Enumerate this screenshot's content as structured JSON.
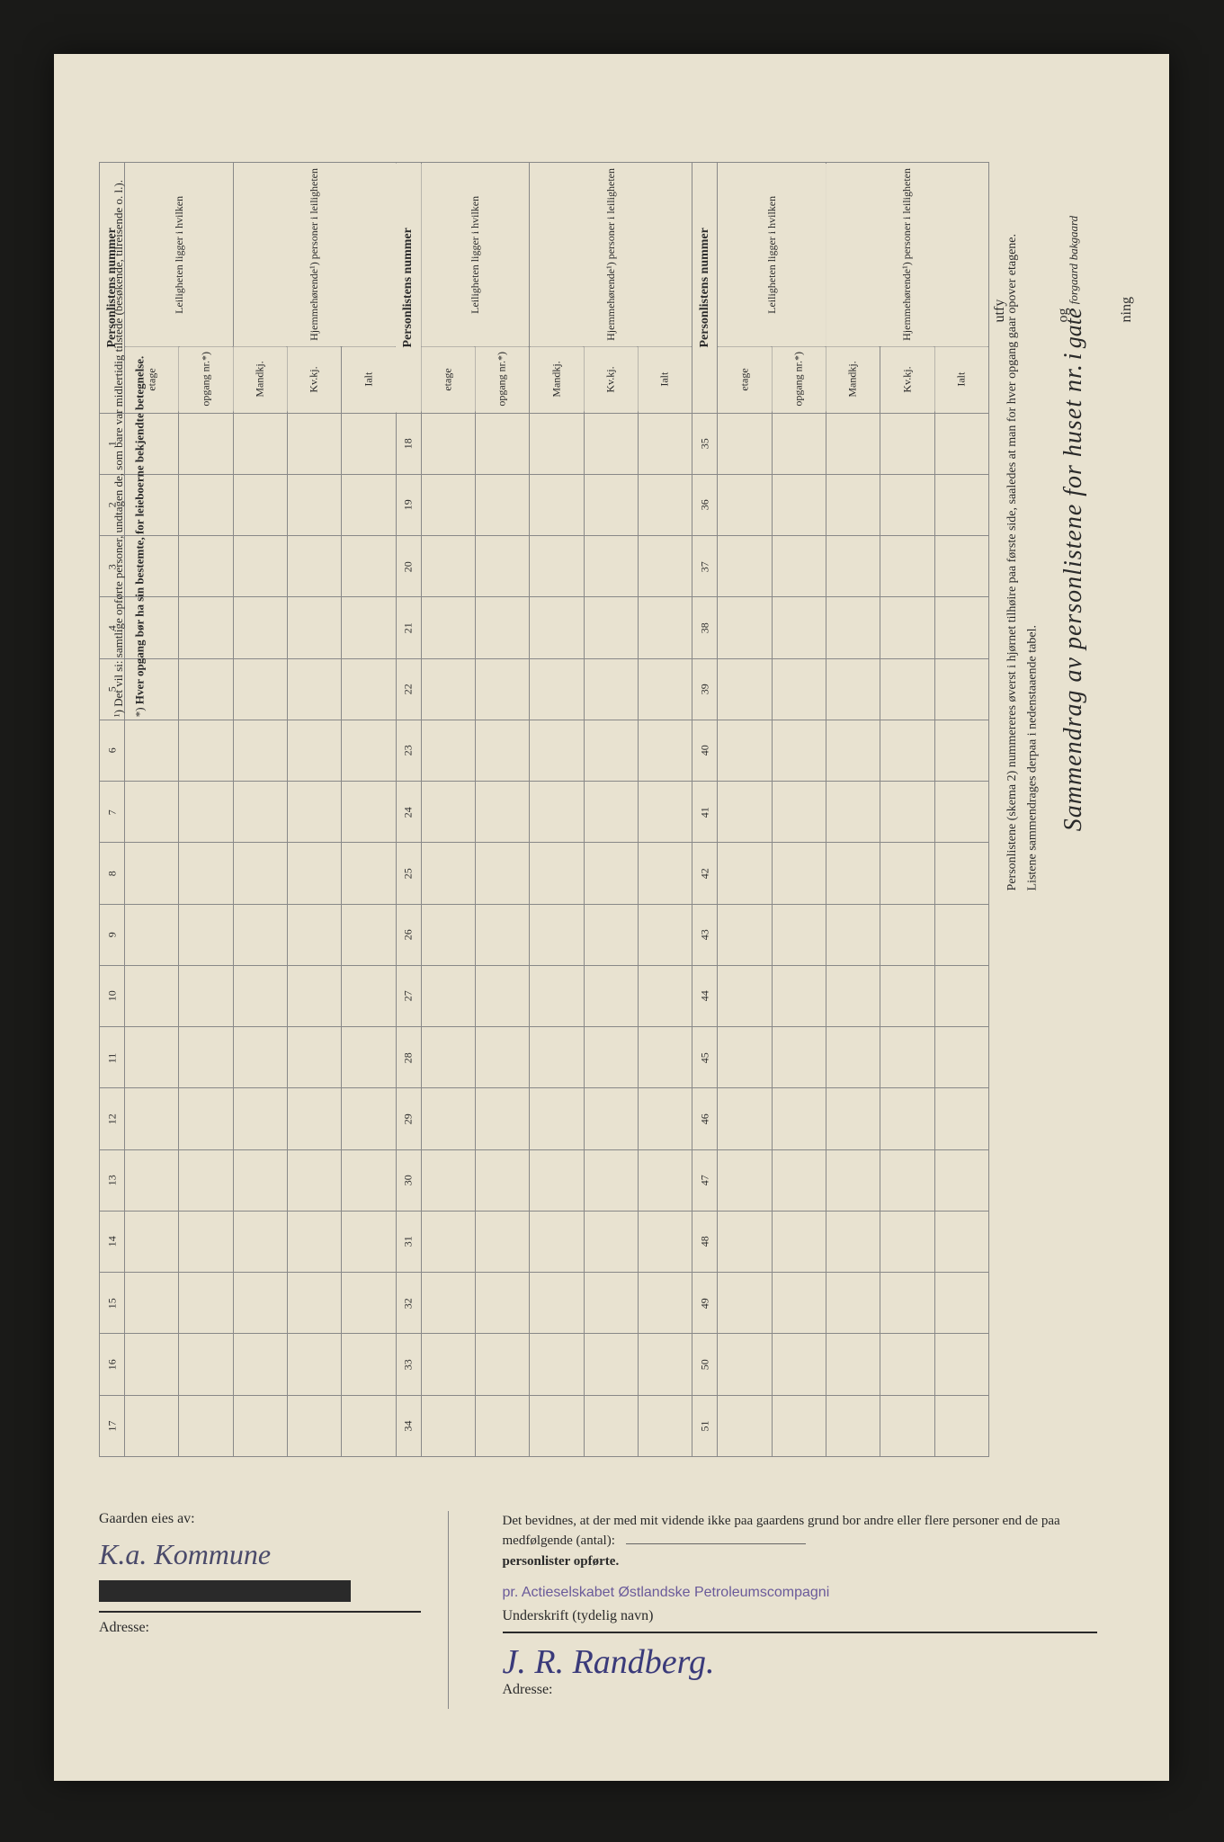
{
  "title": {
    "main": "Sammendrag av personlistene for huset nr.",
    "i": "i",
    "gate": "gate",
    "forgaard": "forgaard",
    "bakgaard": "bakgaard"
  },
  "instruction_line1": "Personlistene (skema 2) nummereres øverst i hjørnet tilhøire paa første side, saaledes at man for hver opgang gaar opover etagene.",
  "instruction_line2": "Listene sammendrages derpaa i nedenstaaende tabel.",
  "right_margin": {
    "utfy": "utfy",
    "og": "og",
    "ning": "ning"
  },
  "headers": {
    "personlistens_nummer": "Personlistens nummer",
    "leiligheten": "Leiligheten ligger i hvilken",
    "etage": "etage",
    "opgang": "opgang nr.*)",
    "hjemmehorende": "Hjemmehørende¹) personer i leiligheten",
    "mandkj": "Mandkj.",
    "kvkj": "Kv.kj.",
    "ialt": "Ialt"
  },
  "row_numbers_col1": [
    "1",
    "2",
    "3",
    "4",
    "5",
    "6",
    "7",
    "8",
    "9",
    "10",
    "11",
    "12",
    "13",
    "14",
    "15",
    "16",
    "17"
  ],
  "row_numbers_col2": [
    "18",
    "19",
    "20",
    "21",
    "22",
    "23",
    "24",
    "25",
    "26",
    "27",
    "28",
    "29",
    "30",
    "31",
    "32",
    "33",
    "34"
  ],
  "row_numbers_col3": [
    "35",
    "36",
    "37",
    "38",
    "39",
    "40",
    "41",
    "42",
    "43",
    "44",
    "45",
    "46",
    "47",
    "48",
    "49",
    "50",
    "51"
  ],
  "footnotes": {
    "note1_marker": "¹)",
    "note1": "Det vil si: samtlige opførte personer, undtagen de, som bare var midlertidig tilstede (besøkende, tilreisende o. l.).",
    "note2_marker": "*)",
    "note2": "Hver opgang bør ha sin bestemte, for leieboerne bekjendte betegnelse."
  },
  "bottom": {
    "gaarden_eies": "Gaarden eies av:",
    "owner_handwriting": "K.a. Kommune",
    "adresse": "Adresse:",
    "attestation": "Det bevidnes, at der med mit vidende ikke paa gaardens grund bor andre eller flere personer end de paa medfølgende (antal):",
    "personlister": "personlister opførte.",
    "underskrift": "Underskrift (tydelig navn)",
    "stamp": "pr. Actieselskabet Østlandske Petroleumscompagni",
    "signature": "J. R. Randberg."
  },
  "styling": {
    "page_bg": "#e8e2d0",
    "ink_color": "#2a2a2a",
    "handwriting_color": "#4a4a6a",
    "stamp_color": "#6a5a9a",
    "border_color": "#888"
  }
}
